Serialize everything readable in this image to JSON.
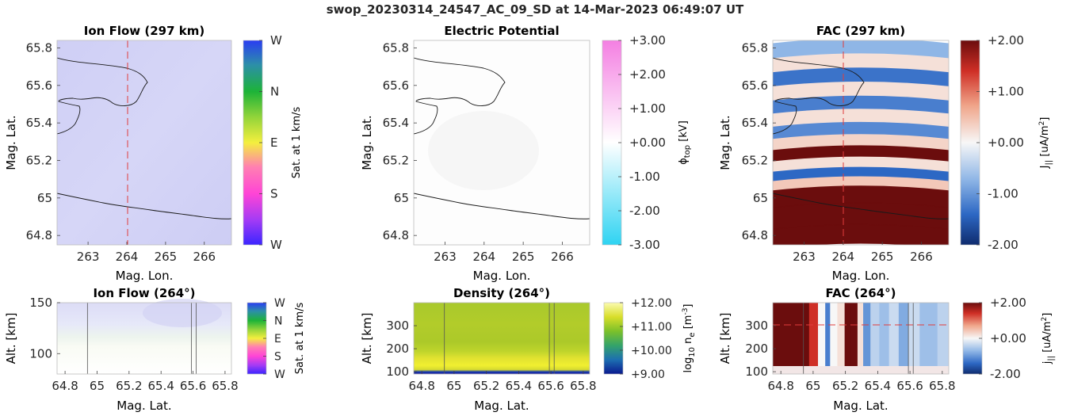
{
  "figure_title": "swop_20230314_24547_AC_09_SD at 14-Mar-2023 06:49:07 UT",
  "chart_data": [
    {
      "id": "ion-flow-map",
      "type": "heatmap",
      "title": "Ion Flow (297 km)",
      "xlabel": "Mag. Lon.",
      "ylabel": "Mag. Lat.",
      "xlim": [
        262.2,
        266.7
      ],
      "ylim": [
        64.75,
        65.84
      ],
      "xticks": [
        263,
        264,
        265,
        266
      ],
      "xtick_labels": [
        "263",
        "264",
        "265",
        "266"
      ],
      "yticks": [
        64.8,
        65,
        65.2,
        65.4,
        65.6,
        65.8
      ],
      "ytick_labels": [
        "64.8",
        "65",
        "65.2",
        "65.4",
        "65.6",
        "65.8"
      ],
      "marker_line_x": 264,
      "colorbar": {
        "label": "Sat. at 1 km/s",
        "ticks": [
          "W",
          "N",
          "E",
          "S",
          "W"
        ]
      }
    },
    {
      "id": "electric-potential-map",
      "type": "heatmap",
      "title": "Electric Potential",
      "xlabel": "Mag. Lon.",
      "ylabel": "Mag. Lat.",
      "xlim": [
        262.2,
        266.7
      ],
      "ylim": [
        64.75,
        65.84
      ],
      "xticks": [
        263,
        264,
        265,
        266
      ],
      "xtick_labels": [
        "263",
        "264",
        "265",
        "266"
      ],
      "yticks": [
        64.8,
        65,
        65.2,
        65.4,
        65.6,
        65.8
      ],
      "ytick_labels": [
        "64.8",
        "65",
        "65.2",
        "65.4",
        "65.6",
        "65.8"
      ],
      "colorbar": {
        "label": "ϕ_top [kV]",
        "range": [
          -3,
          3
        ],
        "ticks": [
          "+3.00",
          "+2.00",
          "+1.00",
          "+0.00",
          "-1.00",
          "-2.00",
          "-3.00"
        ]
      }
    },
    {
      "id": "fac-map",
      "type": "heatmap",
      "title": "FAC (297 km)",
      "xlabel": "Mag. Lon.",
      "ylabel": "Mag. Lat.",
      "xlim": [
        262.2,
        266.7
      ],
      "ylim": [
        64.75,
        65.84
      ],
      "xticks": [
        263,
        264,
        265,
        266
      ],
      "xtick_labels": [
        "263",
        "264",
        "265",
        "266"
      ],
      "yticks": [
        64.8,
        65,
        65.2,
        65.4,
        65.6,
        65.8
      ],
      "ytick_labels": [
        "64.8",
        "65",
        "65.2",
        "65.4",
        "65.6",
        "65.8"
      ],
      "marker_line_x": 264,
      "colorbar": {
        "label": "J_|| [uA/m²]",
        "range": [
          -2,
          2
        ],
        "ticks": [
          "+2.00",
          "+1.00",
          "+0.00",
          "-1.00",
          "-2.00"
        ]
      },
      "bands": [
        {
          "lat": 65.8,
          "value": -0.7
        },
        {
          "lat": 65.72,
          "value": 0.2
        },
        {
          "lat": 65.65,
          "value": -1.3
        },
        {
          "lat": 65.57,
          "value": 0.2
        },
        {
          "lat": 65.5,
          "value": -1.2
        },
        {
          "lat": 65.43,
          "value": 0.2
        },
        {
          "lat": 65.36,
          "value": -1.1
        },
        {
          "lat": 65.3,
          "value": 0.3
        },
        {
          "lat": 65.24,
          "value": 2.0
        },
        {
          "lat": 65.18,
          "value": 0.2
        },
        {
          "lat": 65.13,
          "value": -1.4
        },
        {
          "lat": 65.08,
          "value": 0.4
        },
        {
          "lat": 65.03,
          "value": 2.0
        },
        {
          "lat": 64.9,
          "value": 2.0
        },
        {
          "lat": 64.8,
          "value": 2.0
        }
      ]
    },
    {
      "id": "ion-flow-altitude",
      "type": "heatmap",
      "title": "Ion Flow (264°)",
      "xlabel": "Mag. Lat.",
      "ylabel": "Alt. [km]",
      "xlim": [
        64.75,
        65.84
      ],
      "ylim": [
        80,
        150
      ],
      "xticks": [
        64.8,
        65,
        65.2,
        65.4,
        65.6,
        65.8
      ],
      "xtick_labels": [
        "64.8",
        "65",
        "65.2",
        "65.4",
        "65.6",
        "65.8"
      ],
      "yticks": [
        100,
        150
      ],
      "ytick_labels": [
        "100",
        "150"
      ],
      "vertical_lines_x": [
        64.94,
        65.59,
        65.62
      ],
      "colorbar": {
        "label": "Sat. at 1 km/s",
        "ticks": [
          "W",
          "N",
          "E",
          "S",
          "W"
        ]
      }
    },
    {
      "id": "density-altitude",
      "type": "heatmap",
      "title": "Density (264°)",
      "xlabel": "Mag. Lat.",
      "ylabel": "Alt. [km]",
      "xlim": [
        64.75,
        65.84
      ],
      "ylim": [
        90,
        400
      ],
      "xticks": [
        64.8,
        65,
        65.2,
        65.4,
        65.6,
        65.8
      ],
      "xtick_labels": [
        "64.8",
        "65",
        "65.2",
        "65.4",
        "65.6",
        "65.8"
      ],
      "yticks": [
        100,
        200,
        300
      ],
      "ytick_labels": [
        "100",
        "200",
        "300"
      ],
      "vertical_lines_x": [
        64.94,
        65.59,
        65.62
      ],
      "colorbar": {
        "label": "log₁₀ n_e [m⁻³]",
        "range": [
          9,
          12
        ],
        "ticks": [
          "+12.00",
          "+11.00",
          "+10.00",
          "+9.00"
        ]
      }
    },
    {
      "id": "fac-altitude",
      "type": "heatmap",
      "title": "FAC (264°)",
      "xlabel": "Mag. Lat.",
      "ylabel": "Alt. [km]",
      "xlim": [
        64.75,
        65.84
      ],
      "ylim": [
        90,
        400
      ],
      "xticks": [
        64.8,
        65,
        65.2,
        65.4,
        65.6,
        65.8
      ],
      "xtick_labels": [
        "64.8",
        "65",
        "65.2",
        "65.4",
        "65.6",
        "65.8"
      ],
      "yticks": [
        100,
        200,
        300
      ],
      "ytick_labels": [
        "100",
        "200",
        "300"
      ],
      "marker_line_y": 300,
      "vertical_lines_x": [
        64.94,
        65.59,
        65.62
      ],
      "colorbar": {
        "label": "j_|| [uA/m²]",
        "range": [
          -2,
          2
        ],
        "ticks": [
          "+2.00",
          "+0.00",
          "-2.00"
        ]
      },
      "columns": [
        {
          "lat": 64.76,
          "value": 2.0
        },
        {
          "lat": 64.95,
          "value": 2.0
        },
        {
          "lat": 65.0,
          "value": 1.4
        },
        {
          "lat": 65.06,
          "value": 0.0
        },
        {
          "lat": 65.09,
          "value": -1.2
        },
        {
          "lat": 65.12,
          "value": 0.0
        },
        {
          "lat": 65.18,
          "value": 0.2
        },
        {
          "lat": 65.21,
          "value": 2.0
        },
        {
          "lat": 65.26,
          "value": 2.0
        },
        {
          "lat": 65.29,
          "value": 0.2
        },
        {
          "lat": 65.33,
          "value": -1.0
        },
        {
          "lat": 65.38,
          "value": -0.4
        },
        {
          "lat": 65.44,
          "value": -0.6
        },
        {
          "lat": 65.5,
          "value": -0.3
        },
        {
          "lat": 65.56,
          "value": -0.8
        },
        {
          "lat": 65.62,
          "value": -0.3
        },
        {
          "lat": 65.7,
          "value": -0.6
        },
        {
          "lat": 65.84,
          "value": -0.4
        }
      ]
    }
  ]
}
